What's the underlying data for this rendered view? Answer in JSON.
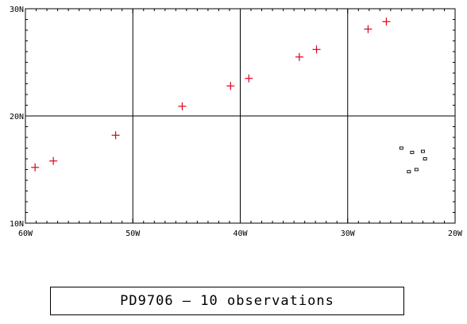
{
  "map": {
    "lon_range": [
      -60,
      -20
    ],
    "lat_range": [
      10,
      30
    ],
    "grid_lons": [
      -50,
      -40,
      -30
    ],
    "grid_lats": [
      20
    ],
    "x_ticks": [
      {
        "lon": -60,
        "label": "60W"
      },
      {
        "lon": -50,
        "label": "50W"
      },
      {
        "lon": -40,
        "label": "40W"
      },
      {
        "lon": -30,
        "label": "30W"
      },
      {
        "lon": -20,
        "label": "20W"
      }
    ],
    "y_ticks": [
      {
        "lat": 10,
        "label": "10N"
      },
      {
        "lat": 20,
        "label": "20N"
      },
      {
        "lat": 30,
        "label": "30N"
      }
    ],
    "minor_tick_step_deg": 1,
    "marker_color": "#e0001b",
    "observations": [
      {
        "lon": -59.1,
        "lat": 15.2
      },
      {
        "lon": -57.4,
        "lat": 15.8
      },
      {
        "lon": -51.6,
        "lat": 18.2
      },
      {
        "lon": -45.4,
        "lat": 20.9
      },
      {
        "lon": -40.9,
        "lat": 22.8
      },
      {
        "lon": -39.2,
        "lat": 23.5
      },
      {
        "lon": -34.5,
        "lat": 25.5
      },
      {
        "lon": -32.9,
        "lat": 26.2
      },
      {
        "lon": -28.1,
        "lat": 28.1
      },
      {
        "lon": -26.4,
        "lat": 28.8
      }
    ],
    "islands": [
      {
        "lon": -25.0,
        "lat": 17.0
      },
      {
        "lon": -24.0,
        "lat": 16.6
      },
      {
        "lon": -23.0,
        "lat": 16.7
      },
      {
        "lon": -22.8,
        "lat": 16.0
      },
      {
        "lon": -23.6,
        "lat": 15.0
      },
      {
        "lon": -24.3,
        "lat": 14.8
      }
    ]
  },
  "caption": "PD9706 — 10 observations"
}
